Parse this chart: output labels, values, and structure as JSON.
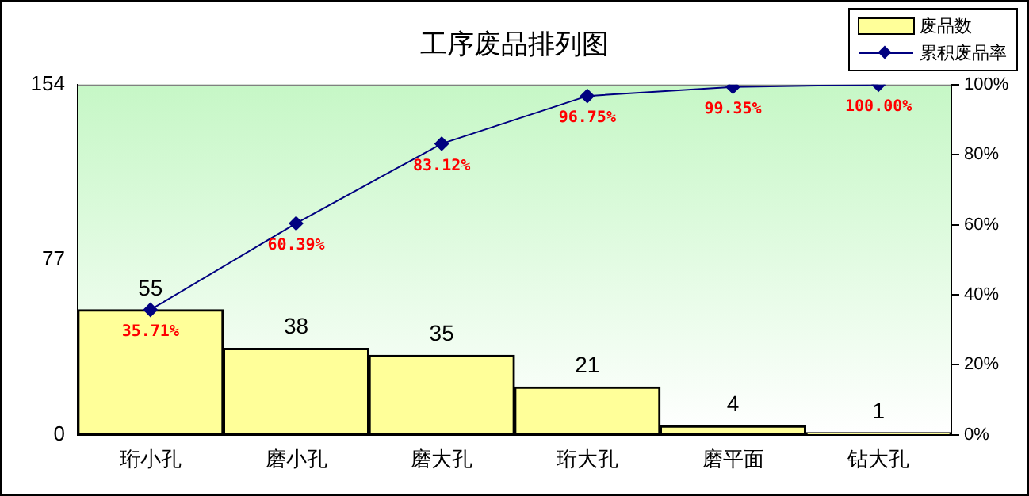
{
  "chart_data": {
    "type": "bar",
    "title": "工序废品排列图",
    "categories": [
      "珩小孔",
      "磨小孔",
      "磨大孔",
      "珩大孔",
      "磨平面",
      "钻大孔"
    ],
    "series": [
      {
        "name": "废品数",
        "color": "#ffff99",
        "values": [
          55,
          38,
          35,
          21,
          4,
          1
        ],
        "value_labels": [
          "55",
          "38",
          "35",
          "21",
          "4",
          "1"
        ]
      },
      {
        "name": "累积废品率",
        "type": "line",
        "axis": "y2",
        "color": "#000080",
        "values": [
          35.71,
          60.39,
          83.12,
          96.75,
          99.35,
          100
        ],
        "value_labels": [
          "35.71%",
          "60.39%",
          "83.12%",
          "96.75%",
          "99.35%",
          "100.00%"
        ]
      }
    ],
    "ylim": [
      0,
      154
    ],
    "yticks": [
      0,
      77,
      154
    ],
    "y2lim": [
      0,
      100
    ],
    "y2ticks": [
      {
        "value": 0,
        "label": "0%"
      },
      {
        "value": 20,
        "label": "20%"
      },
      {
        "value": 40,
        "label": "40%"
      },
      {
        "value": 60,
        "label": "60%"
      },
      {
        "value": 80,
        "label": "80%"
      },
      {
        "value": 100,
        "label": "100%"
      }
    ],
    "legend": "top right",
    "grid": false,
    "marker": "diamond",
    "line_style": "solid"
  }
}
